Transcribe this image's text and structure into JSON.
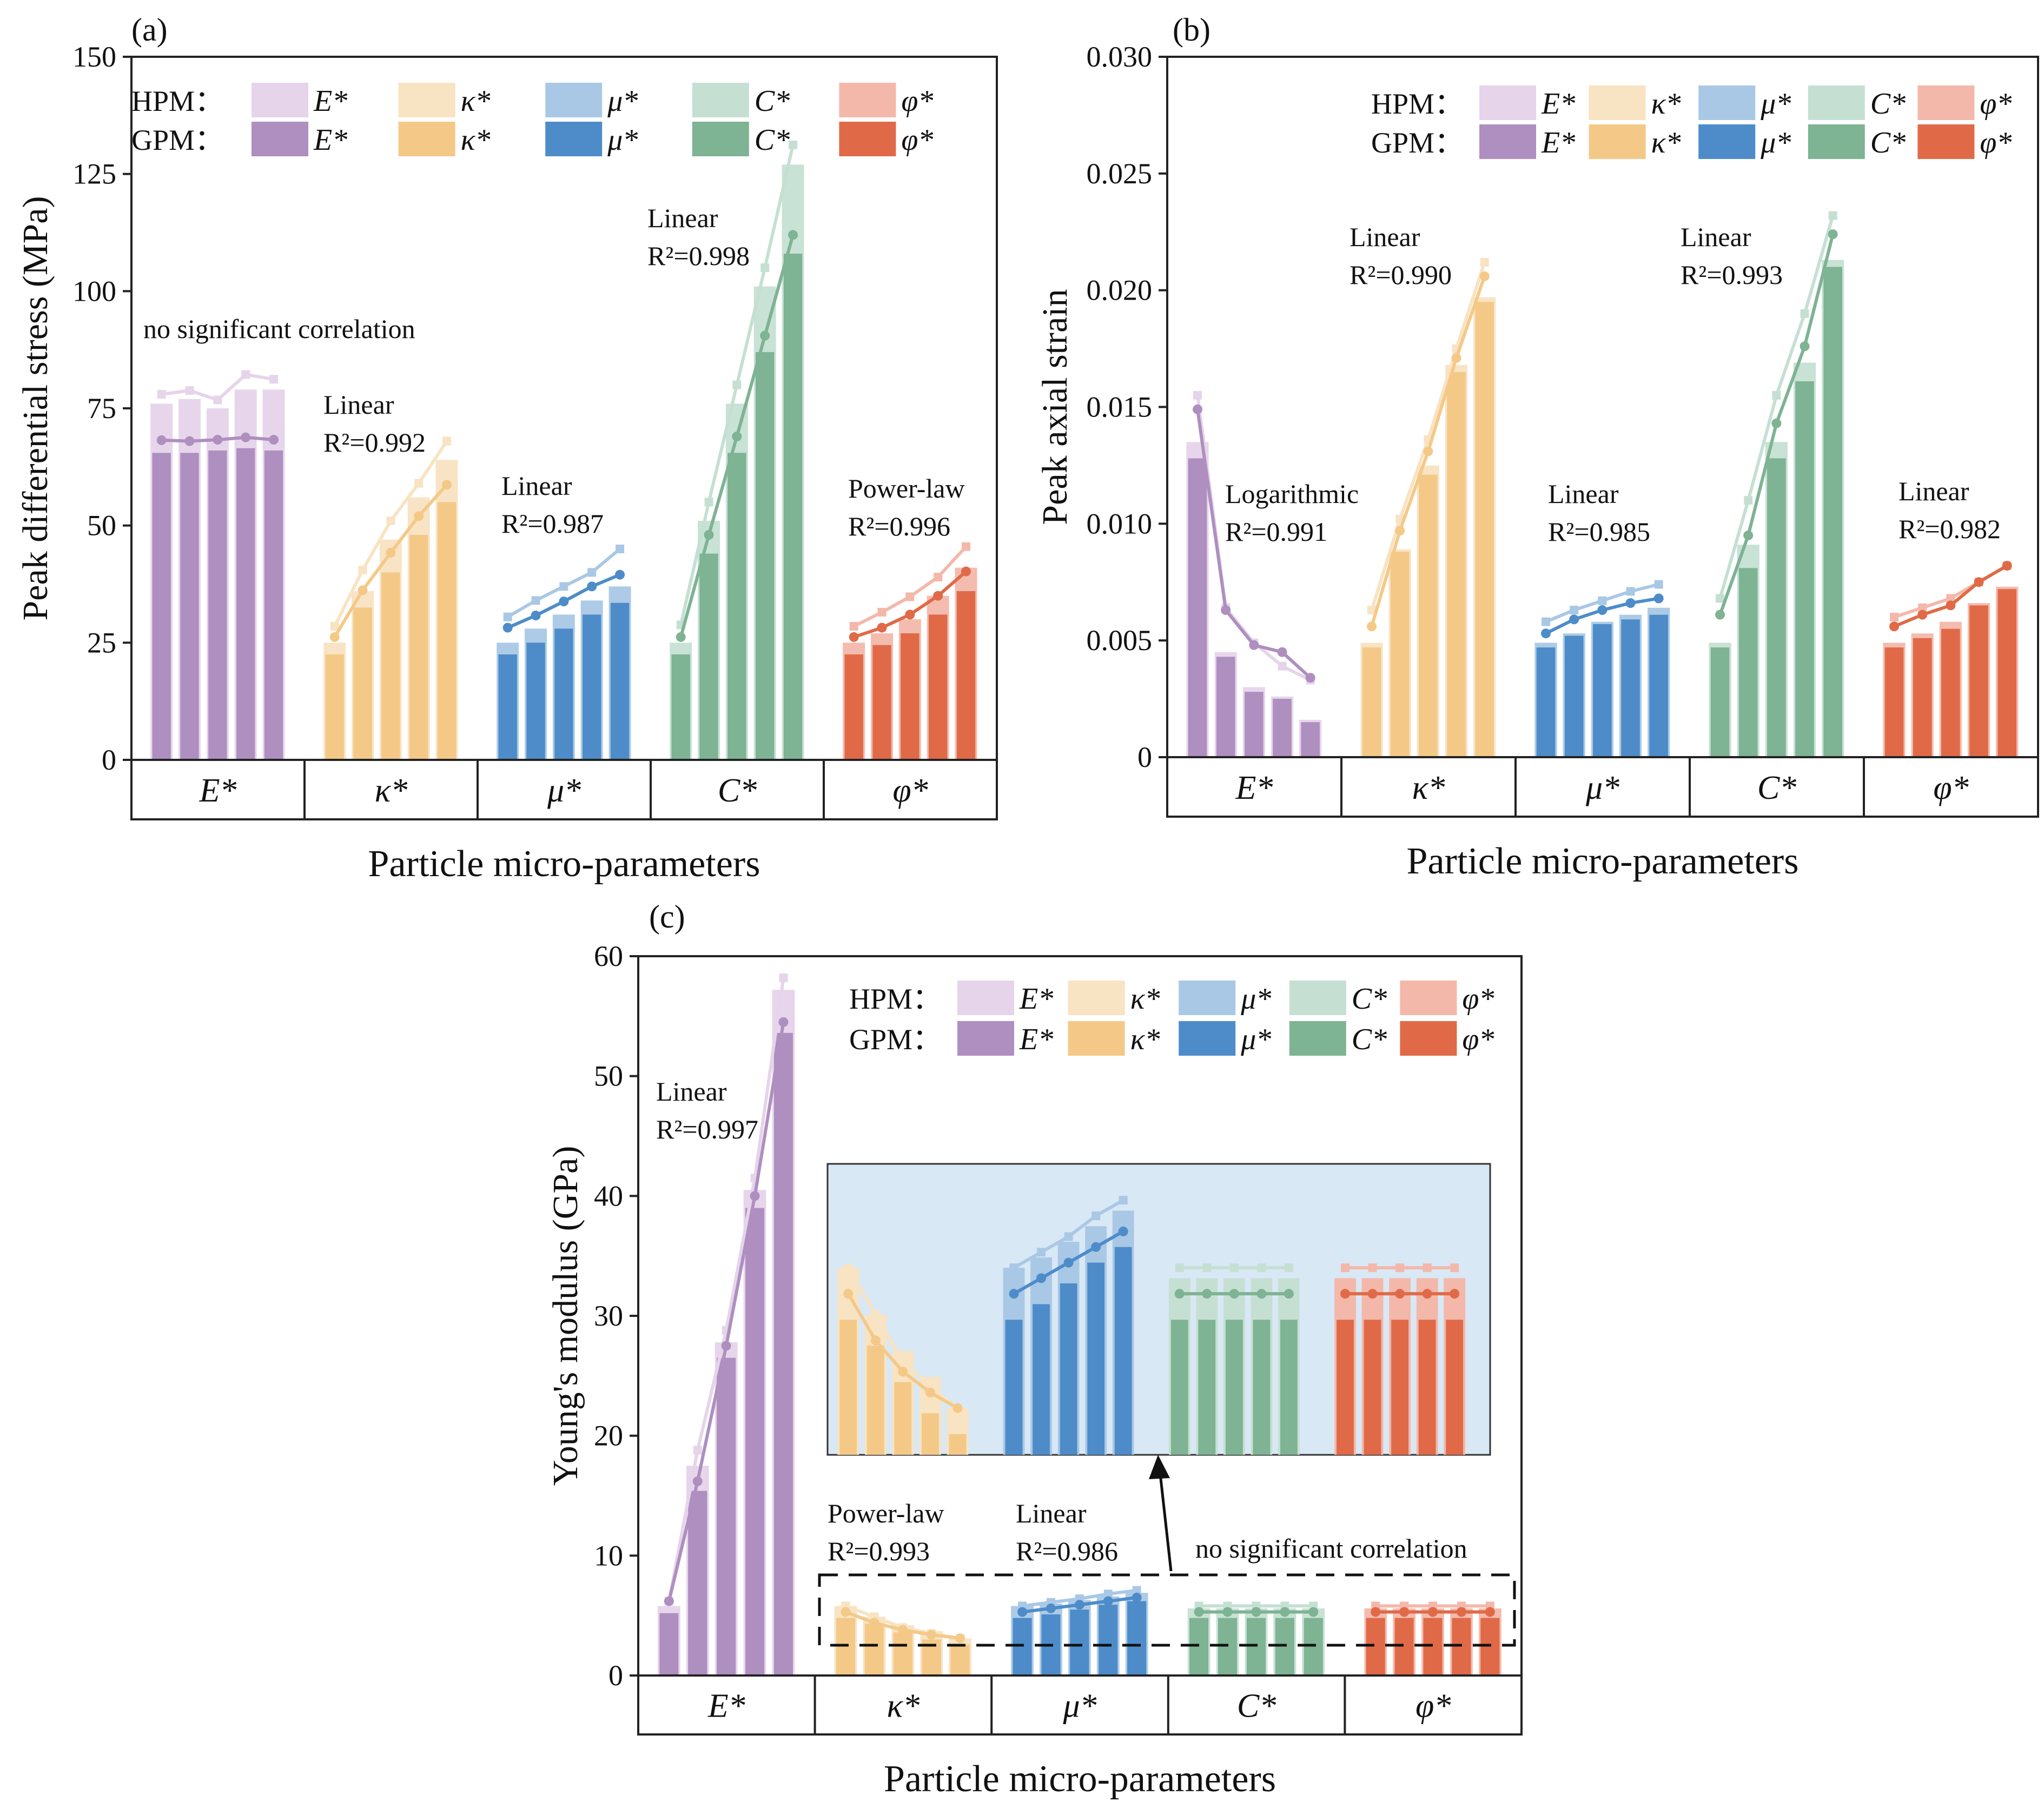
{
  "figure": {
    "xlabel": "Particle micro-parameters",
    "categories": [
      "E*",
      "κ*",
      "μ*",
      "C*",
      "φ*"
    ],
    "legend": {
      "hpm_label": "HPM：",
      "gpm_label": "GPM：",
      "symbols": [
        "E*",
        "κ*",
        "μ*",
        "C*",
        "φ*"
      ]
    },
    "colors": {
      "hpm": [
        "#e6d4ea",
        "#f8e3c2",
        "#a9c8e6",
        "#c5e0d3",
        "#f3b8aa"
      ],
      "gpm": [
        "#ae8fc0",
        "#f4c987",
        "#4d8cc9",
        "#7eb393",
        "#e06a48"
      ],
      "inset_bg": "#d9e8f5"
    }
  },
  "chart_data": [
    {
      "id": "a",
      "panel_label": "(a)",
      "type": "bar",
      "ylabel": "Peak differential stress (MPa)",
      "ylim": [
        0,
        150
      ],
      "yticks": [
        "0",
        "25",
        "50",
        "75",
        "100",
        "125",
        "150"
      ],
      "series": [
        {
          "name": "HPM",
          "groups": [
            [
              76,
              77,
              75,
              79,
              79
            ],
            [
              25,
              36,
              47,
              56,
              64
            ],
            [
              25,
              28,
              31,
              34,
              37
            ],
            [
              25,
              51,
              76,
              101,
              127
            ],
            [
              25,
              27,
              30,
              35,
              41
            ]
          ]
        },
        {
          "name": "GPM",
          "groups": [
            [
              65.5,
              65.5,
              66,
              66.5,
              66
            ],
            [
              22.5,
              32.5,
              40,
              48,
              55
            ],
            [
              22.5,
              25,
              28,
              31,
              33.5
            ],
            [
              22.5,
              44,
              65.5,
              87,
              108
            ],
            [
              22.5,
              24.5,
              27,
              31,
              36
            ]
          ]
        }
      ],
      "lines_hpm": [
        [
          78,
          78.8,
          76.8,
          82.2,
          81.2
        ],
        [
          28.5,
          40.5,
          51,
          59,
          68
        ],
        [
          30.5,
          34,
          37,
          40,
          45
        ],
        [
          28.8,
          55,
          80,
          105,
          131.2
        ],
        [
          28.5,
          31.5,
          34.8,
          39,
          45.5
        ]
      ],
      "lines_gpm": [
        [
          68.2,
          68,
          68.3,
          68.8,
          68.3
        ],
        [
          26.2,
          36.2,
          44.2,
          52,
          58.7
        ],
        [
          28.2,
          30.8,
          33.8,
          37,
          39.5
        ],
        [
          26.2,
          48,
          69,
          90.5,
          112
        ],
        [
          26.2,
          28.2,
          31,
          35,
          40.2
        ]
      ],
      "annotations": [
        {
          "text": "no significant correlation",
          "lines": [
            "no significant correlation"
          ]
        },
        {
          "text": "Linear R²=0.992",
          "lines": [
            "Linear",
            "R²=0.992"
          ]
        },
        {
          "text": "Linear R²=0.987",
          "lines": [
            "Linear",
            "R²=0.987"
          ]
        },
        {
          "text": "Linear R²=0.998",
          "lines": [
            "Linear",
            "R²=0.998"
          ]
        },
        {
          "text": "Power-law R²=0.996",
          "lines": [
            "Power-law",
            "R²=0.996"
          ]
        }
      ]
    },
    {
      "id": "b",
      "panel_label": "(b)",
      "type": "bar",
      "ylabel": "Peak axial strain",
      "ylim": [
        0,
        0.03
      ],
      "yticks": [
        "0",
        "0.005",
        "0.010",
        "0.015",
        "0.020",
        "0.025",
        "0.030"
      ],
      "series": [
        {
          "name": "HPM",
          "groups": [
            [
              0.0135,
              0.0045,
              0.003,
              0.0026,
              0.0016
            ],
            [
              0.0049,
              0.0089,
              0.0125,
              0.0168,
              0.0197
            ],
            [
              0.0049,
              0.0053,
              0.0058,
              0.0061,
              0.0064
            ],
            [
              0.0049,
              0.0091,
              0.0135,
              0.0169,
              0.0213
            ],
            [
              0.0049,
              0.0053,
              0.0058,
              0.0066,
              0.0073
            ]
          ]
        },
        {
          "name": "GPM",
          "groups": [
            [
              0.0128,
              0.0043,
              0.0028,
              0.0025,
              0.0015
            ],
            [
              0.0047,
              0.0088,
              0.0121,
              0.0165,
              0.0195
            ],
            [
              0.0047,
              0.0052,
              0.0057,
              0.0059,
              0.0061
            ],
            [
              0.0047,
              0.0081,
              0.0128,
              0.0161,
              0.021
            ],
            [
              0.0047,
              0.0051,
              0.0055,
              0.0065,
              0.0072
            ]
          ]
        }
      ],
      "lines_hpm": [
        [
          0.0155,
          0.0064,
          0.0049,
          0.0039,
          0.0033
        ],
        [
          0.0063,
          0.0102,
          0.0136,
          0.0175,
          0.0212
        ],
        [
          0.0058,
          0.0063,
          0.0067,
          0.0071,
          0.0074
        ],
        [
          0.0068,
          0.011,
          0.0155,
          0.019,
          0.0232
        ],
        [
          0.006,
          0.0064,
          0.0068,
          0.0075,
          0.0082
        ]
      ],
      "lines_gpm": [
        [
          0.0149,
          0.0063,
          0.0048,
          0.0045,
          0.0034
        ],
        [
          0.0056,
          0.0097,
          0.0131,
          0.0171,
          0.0206
        ],
        [
          0.0053,
          0.0059,
          0.0063,
          0.0066,
          0.0068
        ],
        [
          0.0061,
          0.0095,
          0.0143,
          0.0176,
          0.0224
        ],
        [
          0.0056,
          0.0061,
          0.0065,
          0.0075,
          0.0082
        ]
      ],
      "annotations": [
        {
          "text": "Logarithmic R²=0.991",
          "lines": [
            "Logarithmic",
            "R²=0.991"
          ]
        },
        {
          "text": "Linear R²=0.990",
          "lines": [
            "Linear",
            "R²=0.990"
          ]
        },
        {
          "text": "Linear R²=0.985",
          "lines": [
            "Linear",
            "R²=0.985"
          ]
        },
        {
          "text": "Linear R²=0.993",
          "lines": [
            "Linear",
            "R²=0.993"
          ]
        },
        {
          "text": "Linear R²=0.982",
          "lines": [
            "Linear",
            "R²=0.982"
          ]
        }
      ]
    },
    {
      "id": "c",
      "panel_label": "(c)",
      "type": "bar",
      "ylabel": "Young's modulus (GPa)",
      "ylim": [
        0,
        60
      ],
      "yticks": [
        "0",
        "10",
        "20",
        "30",
        "40",
        "50",
        "60"
      ],
      "series": [
        {
          "name": "HPM",
          "groups": [
            [
              5.8,
              17.5,
              27.8,
              40.5,
              57.2
            ],
            [
              5.8,
              4.9,
              4.2,
              3.7,
              3.1
            ],
            [
              5.8,
              6.0,
              6.3,
              6.6,
              6.9
            ],
            [
              5.6,
              5.6,
              5.6,
              5.6,
              5.6
            ],
            [
              5.6,
              5.6,
              5.6,
              5.6,
              5.6
            ]
          ]
        },
        {
          "name": "GPM",
          "groups": [
            [
              5.2,
              15.4,
              26.5,
              39,
              53.6
            ],
            [
              4.8,
              4.3,
              3.6,
              3.0,
              2.6
            ],
            [
              4.8,
              5.1,
              5.5,
              5.9,
              6.2
            ],
            [
              4.8,
              4.8,
              4.8,
              4.8,
              4.8
            ],
            [
              4.8,
              4.8,
              4.8,
              4.8,
              4.8
            ]
          ]
        }
      ],
      "lines_hpm": [
        [
          6.2,
          18.8,
          28.8,
          41.5,
          58.2
        ],
        [
          5.8,
          4.9,
          4.0,
          3.5,
          3.1
        ],
        [
          5.8,
          6.1,
          6.4,
          6.8,
          7.1
        ],
        [
          5.8,
          5.8,
          5.8,
          5.8,
          5.8
        ],
        [
          5.8,
          5.8,
          5.8,
          5.8,
          5.8
        ]
      ],
      "lines_gpm": [
        [
          6.2,
          16.2,
          27.5,
          40,
          54.5
        ],
        [
          5.3,
          4.4,
          3.8,
          3.4,
          3.1
        ],
        [
          5.3,
          5.6,
          5.9,
          6.2,
          6.5
        ],
        [
          5.3,
          5.3,
          5.3,
          5.3,
          5.3
        ],
        [
          5.3,
          5.3,
          5.3,
          5.3,
          5.3
        ]
      ],
      "annotations": [
        {
          "text": "Linear R²=0.997",
          "lines": [
            "Linear",
            "R²=0.997"
          ]
        },
        {
          "text": "Power-law R²=0.993",
          "lines": [
            "Power-law",
            "R²=0.993"
          ]
        },
        {
          "text": "Linear R²=0.986",
          "lines": [
            "Linear",
            "R²=0.986"
          ]
        },
        {
          "text": "no significant correlation",
          "lines": [
            "no significant correlation"
          ]
        }
      ],
      "inset": {
        "description_groups": [
          1,
          2,
          3,
          4
        ],
        "ylim_zoom": [
          2.2,
          7.8
        ]
      }
    }
  ]
}
